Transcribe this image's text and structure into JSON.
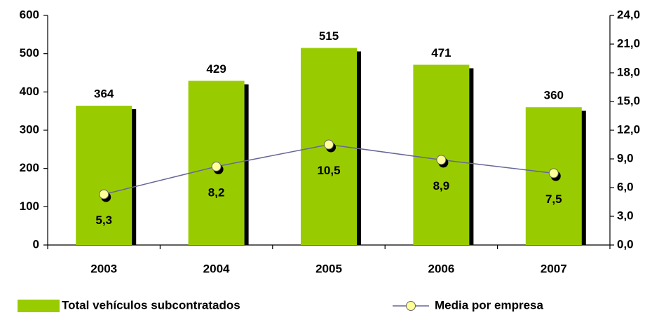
{
  "chart_data": {
    "type": "bar-line",
    "categories": [
      "2003",
      "2004",
      "2005",
      "2006",
      "2007"
    ],
    "series": [
      {
        "name": "Total vehículos subcontratados",
        "type": "bar",
        "color": "#99cc00",
        "values": [
          364,
          429,
          515,
          471,
          360
        ]
      },
      {
        "name": "Media por empresa",
        "type": "line",
        "axis": "y2",
        "color": "#666699",
        "marker_color": "#ffff99",
        "values": [
          5.3,
          8.2,
          10.5,
          8.9,
          7.5
        ],
        "value_labels": [
          "5,3",
          "8,2",
          "10,5",
          "8,9",
          "7,5"
        ]
      }
    ],
    "ylim": [
      0,
      600
    ],
    "yticks": [
      0,
      100,
      200,
      300,
      400,
      500,
      600
    ],
    "y2lim": [
      0,
      24
    ],
    "y2ticks": [
      {
        "value": 0,
        "label": "0,0"
      },
      {
        "value": 3,
        "label": "3,0"
      },
      {
        "value": 6,
        "label": "6,0"
      },
      {
        "value": 9,
        "label": "9,0"
      },
      {
        "value": 12,
        "label": "12,0"
      },
      {
        "value": 15,
        "label": "15,0"
      },
      {
        "value": 18,
        "label": "18,0"
      },
      {
        "value": 21,
        "label": "21,0"
      },
      {
        "value": 24,
        "label": "24,0"
      }
    ],
    "legend": "bottom"
  }
}
